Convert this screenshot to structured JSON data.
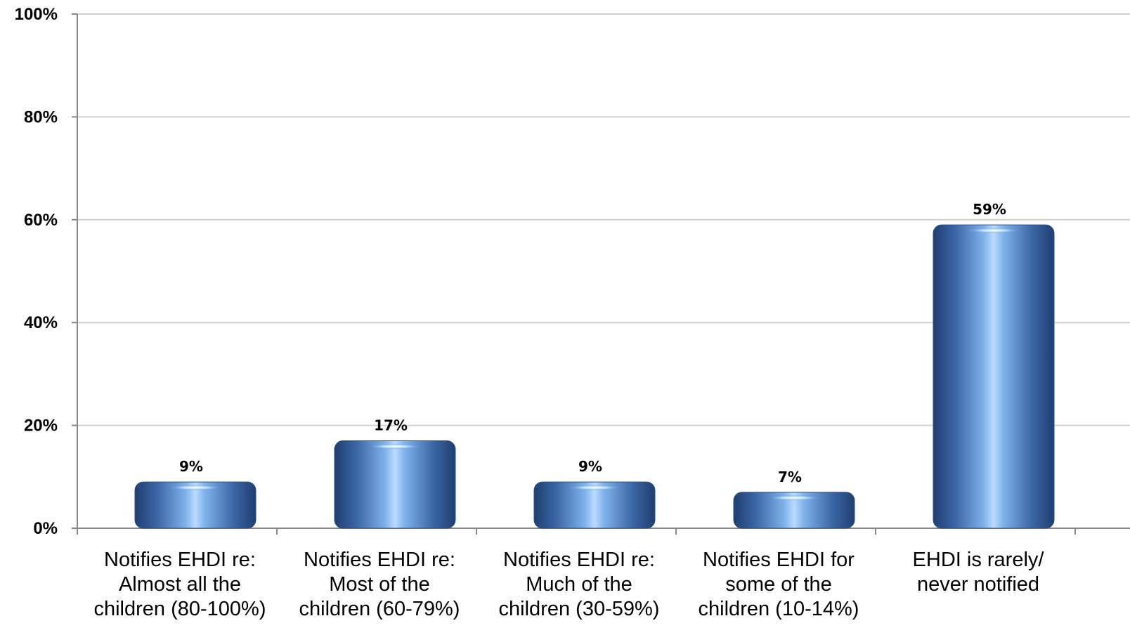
{
  "chart_data": {
    "type": "bar",
    "categories": [
      [
        "Notifies EHDI re:",
        "Almost all the",
        "children (80-100%)"
      ],
      [
        "Notifies EHDI re:",
        "Most of the",
        "children (60-79%)"
      ],
      [
        "Notifies EHDI re:",
        "Much of the",
        "children (30-59%)"
      ],
      [
        "Notifies EHDI for",
        "some of the",
        "children (10-14%)"
      ],
      [
        "EHDI is rarely/",
        "never notified"
      ]
    ],
    "values": [
      9,
      17,
      9,
      7,
      59
    ],
    "data_labels": [
      "9%",
      "17%",
      "9%",
      "7%",
      "59%"
    ],
    "ylim": [
      0,
      100
    ],
    "yticks": [
      0,
      20,
      40,
      60,
      80,
      100
    ],
    "ytick_labels": [
      "0%",
      "20%",
      "40%",
      "60%",
      "80%",
      "100%"
    ],
    "grid": true,
    "legend": "none",
    "bar_color": "#4a78b8",
    "title": "",
    "xlabel": "",
    "ylabel": ""
  }
}
